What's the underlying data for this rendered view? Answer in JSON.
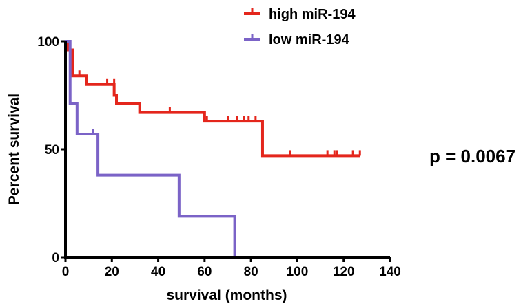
{
  "chart_data": {
    "type": "line",
    "title": "",
    "xlabel": "survival (months)",
    "ylabel": "Percent survival",
    "xlim": [
      0,
      140
    ],
    "ylim": [
      0,
      100
    ],
    "x_ticks": [
      0,
      20,
      40,
      60,
      80,
      100,
      120,
      140
    ],
    "y_ticks": [
      0,
      50,
      100
    ],
    "x_tick_labels": [
      "0",
      "20",
      "40",
      "60",
      "80",
      "100",
      "120",
      "140"
    ],
    "y_tick_labels": [
      "0",
      "50",
      "100"
    ],
    "grid": false,
    "legend_position": "top",
    "step_curve": true,
    "series": [
      {
        "name": "high miR-194",
        "color": "#e4261c",
        "steps": [
          [
            0,
            100
          ],
          [
            1,
            96
          ],
          [
            3,
            84
          ],
          [
            9,
            80
          ],
          [
            21,
            75
          ],
          [
            22,
            71
          ],
          [
            32,
            67
          ],
          [
            60,
            63
          ],
          [
            85,
            47
          ],
          [
            127,
            47
          ]
        ],
        "censored": [
          [
            6,
            84
          ],
          [
            18,
            80
          ],
          [
            21,
            80
          ],
          [
            45,
            67
          ],
          [
            61,
            63
          ],
          [
            70,
            63
          ],
          [
            74,
            63
          ],
          [
            77,
            63
          ],
          [
            79,
            63
          ],
          [
            82,
            63
          ],
          [
            97,
            47
          ],
          [
            113,
            47
          ],
          [
            116,
            47
          ],
          [
            117,
            47
          ],
          [
            124,
            47
          ],
          [
            127,
            47
          ]
        ]
      },
      {
        "name": "low miR-194",
        "color": "#7b63c7",
        "steps": [
          [
            0,
            100
          ],
          [
            2,
            71
          ],
          [
            5,
            57
          ],
          [
            14,
            38
          ],
          [
            49,
            19
          ],
          [
            73,
            0
          ]
        ],
        "censored": [
          [
            12,
            57
          ]
        ]
      }
    ],
    "annotations": [
      "p = 0.0067"
    ]
  }
}
